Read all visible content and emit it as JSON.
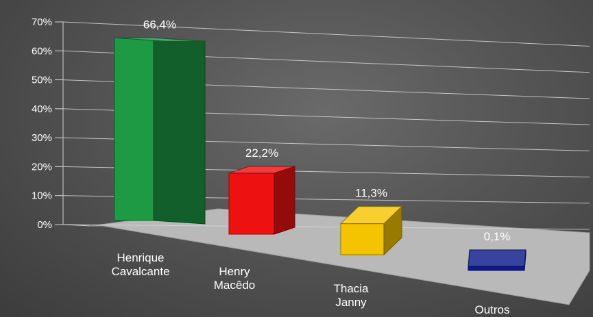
{
  "chart_data": {
    "type": "bar",
    "style": "3d",
    "categories": [
      [
        "Henrique",
        "Cavalcante"
      ],
      [
        "Henry",
        "Macêdo"
      ],
      [
        "Thacia",
        "Janny"
      ],
      [
        "Outros"
      ]
    ],
    "values": [
      66.4,
      22.2,
      11.3,
      0.1
    ],
    "data_labels": [
      "66,4%",
      "22,2%",
      "11,3%",
      "0,1%"
    ],
    "colors": [
      "#1e9a45",
      "#ee1111",
      "#f5c400",
      "#0c1a8a"
    ],
    "yticks": [
      "0%",
      "10%",
      "20%",
      "30%",
      "40%",
      "50%",
      "60%",
      "70%"
    ],
    "ylim": [
      0,
      70
    ],
    "grid": true,
    "legend": "none"
  }
}
